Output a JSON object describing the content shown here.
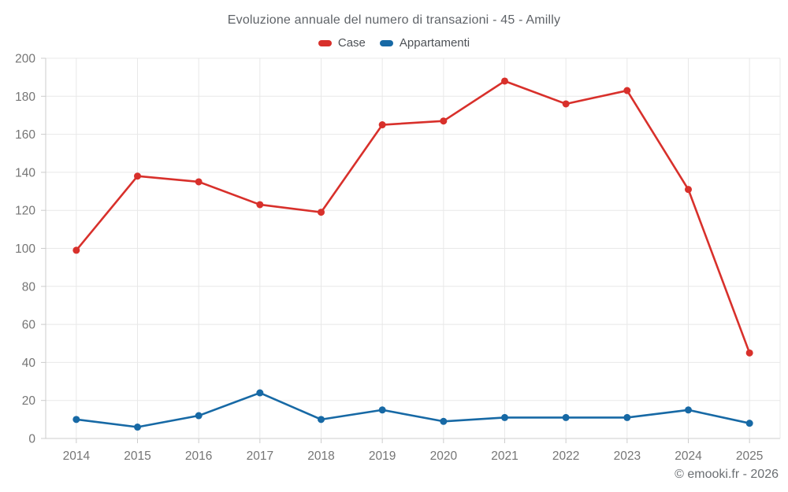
{
  "title": "Evoluzione annuale del numero di transazioni - 45 - Amilly",
  "legend": [
    {
      "label": "Case",
      "color": "#d8302b"
    },
    {
      "label": "Appartamenti",
      "color": "#1769a5"
    }
  ],
  "footer": {
    "copyright": "© emooki.fr - 2026"
  },
  "colors": {
    "case_red": "#d8302b",
    "appartamenti_blue": "#1769a5",
    "grid": "#e8e8e8",
    "axis": "#cccccc",
    "tick_label": "#757575",
    "title_text": "#5f6368",
    "footer_text": "#6b6f73"
  },
  "chart_data": {
    "type": "line",
    "title": "Evoluzione annuale del numero di transazioni - 45 - Amilly",
    "categories": [
      "2014",
      "2015",
      "2016",
      "2017",
      "2018",
      "2019",
      "2020",
      "2021",
      "2022",
      "2023",
      "2024",
      "2025"
    ],
    "series": [
      {
        "name": "Case",
        "color": "#d8302b",
        "values": [
          99,
          138,
          135,
          123,
          119,
          165,
          167,
          188,
          176,
          183,
          131,
          45
        ]
      },
      {
        "name": "Appartamenti",
        "color": "#1769a5",
        "values": [
          10,
          6,
          12,
          24,
          10,
          15,
          9,
          11,
          11,
          11,
          15,
          8
        ]
      }
    ],
    "xlabel": "",
    "ylabel": "",
    "ylim": [
      0,
      200
    ],
    "ytick_step": 20,
    "yticks": [
      0,
      20,
      40,
      60,
      80,
      100,
      120,
      140,
      160,
      180,
      200
    ],
    "grid": true,
    "legend_position": "top"
  }
}
